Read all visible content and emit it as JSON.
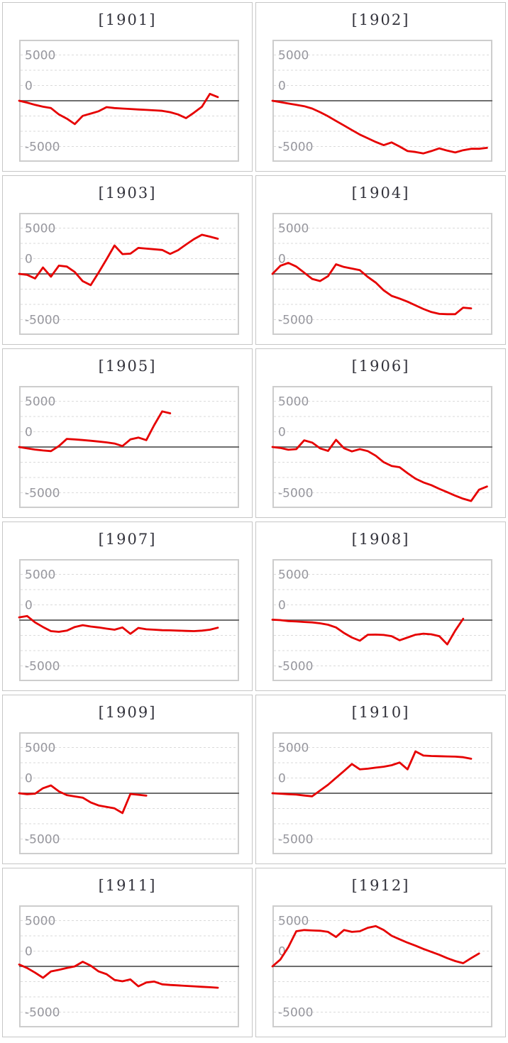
{
  "axis": {
    "tick_labels": [
      "5000",
      "0",
      "-5000"
    ],
    "tick_line_positions": [
      1,
      3,
      7
    ],
    "solid_zero_line_position": 4,
    "grid_divisions": 8,
    "gridline_interval": 1667,
    "ylim": [
      -6667,
      6667
    ],
    "x_axis_labels": "none"
  },
  "colors": {
    "series": "#e60000",
    "grid_dashed": "#dadada",
    "zero_axis": "#6e6e6e",
    "plot_border": "#cdcdcd",
    "cell_border": "#c6c6c6",
    "tick_label": "#97979e",
    "title": "#32323b",
    "background": "#ffffff"
  },
  "chart_data": [
    {
      "type": "line",
      "title": "[1901]",
      "ylabel": "",
      "xlabel": "",
      "values": [
        0,
        -200,
        -450,
        -650,
        -800,
        -1500,
        -1950,
        -2550,
        -1650,
        -1400,
        -1150,
        -700,
        -800,
        -850,
        -900,
        -950,
        -1000,
        -1050,
        -1100,
        -1250,
        -1500,
        -1900,
        -1300,
        -650,
        750,
        400
      ]
    },
    {
      "type": "line",
      "title": "[1902]",
      "ylabel": "",
      "xlabel": "",
      "values": [
        0,
        -150,
        -300,
        -450,
        -600,
        -850,
        -1250,
        -1700,
        -2200,
        -2700,
        -3200,
        -3700,
        -4100,
        -4500,
        -4850,
        -4550,
        -5000,
        -5500,
        -5600,
        -5750,
        -5500,
        -5200,
        -5450,
        -5650,
        -5400,
        -5250,
        -5250,
        -5150
      ]
    },
    {
      "type": "line",
      "title": "[1903]",
      "ylabel": "",
      "xlabel": "",
      "values": [
        0,
        -100,
        -500,
        700,
        -300,
        900,
        800,
        200,
        -800,
        -1230,
        150,
        1600,
        3100,
        2160,
        2210,
        2840,
        2760,
        2690,
        2610,
        2180,
        2590,
        3210,
        3800,
        4270,
        4070,
        3840
      ]
    },
    {
      "type": "line",
      "title": "[1904]",
      "ylabel": "",
      "xlabel": "",
      "values": [
        0,
        880,
        1200,
        800,
        130,
        -550,
        -780,
        -250,
        1050,
        750,
        580,
        400,
        -330,
        -950,
        -1800,
        -2400,
        -2700,
        -3040,
        -3440,
        -3840,
        -4170,
        -4370,
        -4400,
        -4400,
        -3690,
        -3770
      ]
    },
    {
      "type": "line",
      "title": "[1905]",
      "ylabel": "",
      "xlabel": "",
      "values": [
        0,
        -150,
        -280,
        -380,
        -450,
        100,
        880,
        830,
        760,
        680,
        600,
        500,
        380,
        100,
        830,
        1030,
        750,
        2400,
        3890,
        3680
      ]
    },
    {
      "type": "line",
      "title": "[1906]",
      "ylabel": "",
      "xlabel": "",
      "values": [
        0,
        -100,
        -300,
        -230,
        730,
        480,
        -150,
        -430,
        780,
        -130,
        -480,
        -230,
        -450,
        -950,
        -1660,
        -2080,
        -2210,
        -2860,
        -3460,
        -3870,
        -4170,
        -4570,
        -4940,
        -5320,
        -5650,
        -5900,
        -4670,
        -4320
      ]
    },
    {
      "type": "line",
      "title": "[1907]",
      "ylabel": "",
      "xlabel": "",
      "values": [
        300,
        450,
        -250,
        -750,
        -1200,
        -1280,
        -1150,
        -750,
        -550,
        -700,
        -800,
        -930,
        -1050,
        -800,
        -1500,
        -850,
        -1000,
        -1050,
        -1100,
        -1120,
        -1150,
        -1180,
        -1200,
        -1150,
        -1050,
        -830
      ]
    },
    {
      "type": "line",
      "title": "[1908]",
      "ylabel": "",
      "xlabel": "",
      "values": [
        50,
        0,
        -100,
        -150,
        -200,
        -250,
        -350,
        -500,
        -800,
        -1400,
        -1900,
        -2250,
        -1600,
        -1580,
        -1620,
        -1750,
        -2200,
        -1900,
        -1600,
        -1480,
        -1550,
        -1750,
        -2650,
        -1150,
        150
      ]
    },
    {
      "type": "line",
      "title": "[1909]",
      "ylabel": "",
      "xlabel": "",
      "values": [
        0,
        -100,
        -50,
        550,
        850,
        200,
        -200,
        -350,
        -480,
        -1000,
        -1330,
        -1500,
        -1650,
        -2160,
        -80,
        -160,
        -260
      ]
    },
    {
      "type": "line",
      "title": "[1910]",
      "ylabel": "",
      "xlabel": "",
      "values": [
        0,
        -50,
        -100,
        -150,
        -250,
        -330,
        300,
        930,
        1680,
        2430,
        3190,
        2610,
        2680,
        2800,
        2900,
        3060,
        3360,
        2610,
        4570,
        4120,
        4070,
        4050,
        4020,
        4000,
        3940,
        3770
      ]
    },
    {
      "type": "line",
      "title": "[1911]",
      "ylabel": "",
      "xlabel": "",
      "values": [
        200,
        -180,
        -680,
        -1250,
        -550,
        -380,
        -180,
        0,
        500,
        80,
        -550,
        -850,
        -1480,
        -1630,
        -1430,
        -2180,
        -1760,
        -1660,
        -1960,
        -2030,
        -2080,
        -2130,
        -2180,
        -2230,
        -2280,
        -2330
      ]
    },
    {
      "type": "line",
      "title": "[1912]",
      "ylabel": "",
      "xlabel": "",
      "values": [
        0,
        750,
        2100,
        3840,
        3970,
        3920,
        3890,
        3770,
        3210,
        3970,
        3770,
        3840,
        4220,
        4400,
        3970,
        3340,
        2960,
        2590,
        2260,
        1910,
        1580,
        1260,
        900,
        580,
        350,
        900,
        1410
      ]
    }
  ]
}
